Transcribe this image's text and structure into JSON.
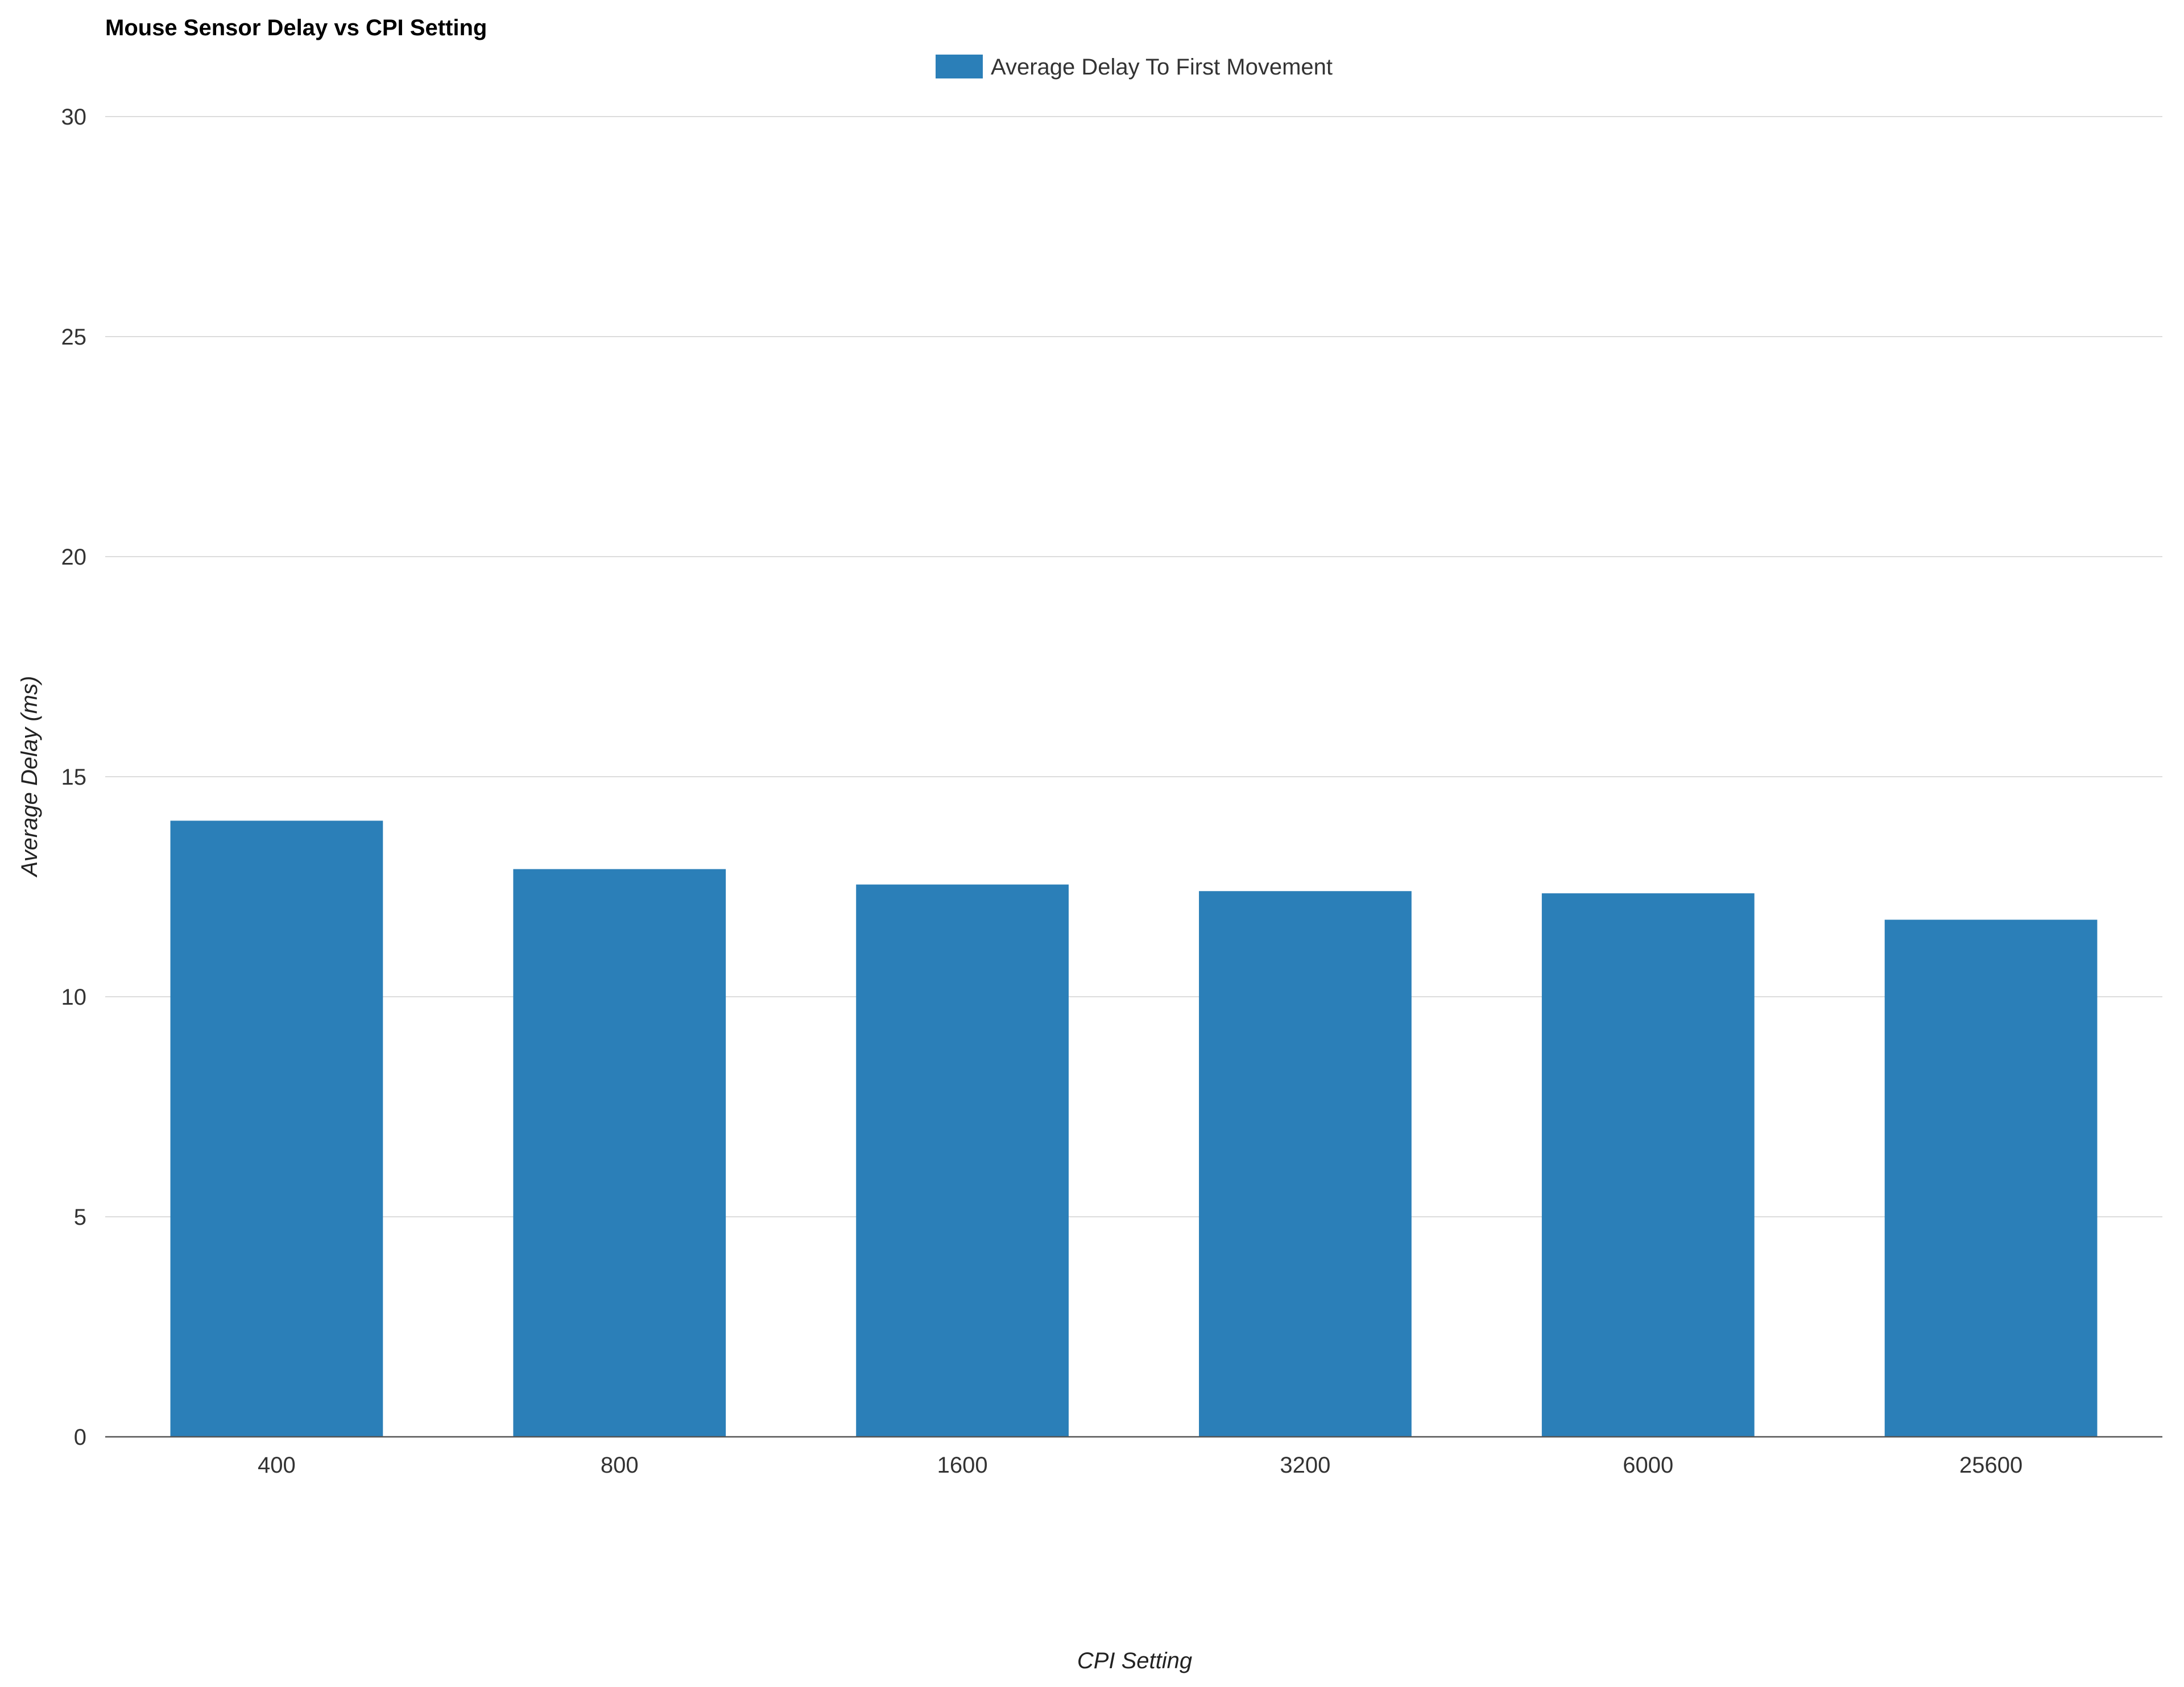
{
  "chart_data": {
    "type": "bar",
    "title": "Mouse Sensor Delay vs CPI Setting",
    "xlabel": "CPI Setting",
    "ylabel": "Average Delay (ms)",
    "categories": [
      "400",
      "800",
      "1600",
      "3200",
      "6000",
      "25600"
    ],
    "series": [
      {
        "name": "Average Delay To First Movement",
        "values": [
          14.0,
          12.9,
          12.55,
          12.4,
          12.35,
          11.75
        ],
        "color": "#2b7fb8"
      }
    ],
    "ylim": [
      0,
      30
    ],
    "yticks": [
      "0",
      "5",
      "10",
      "15",
      "20",
      "25",
      "30"
    ],
    "grid": true,
    "legend_position": "top-center"
  }
}
